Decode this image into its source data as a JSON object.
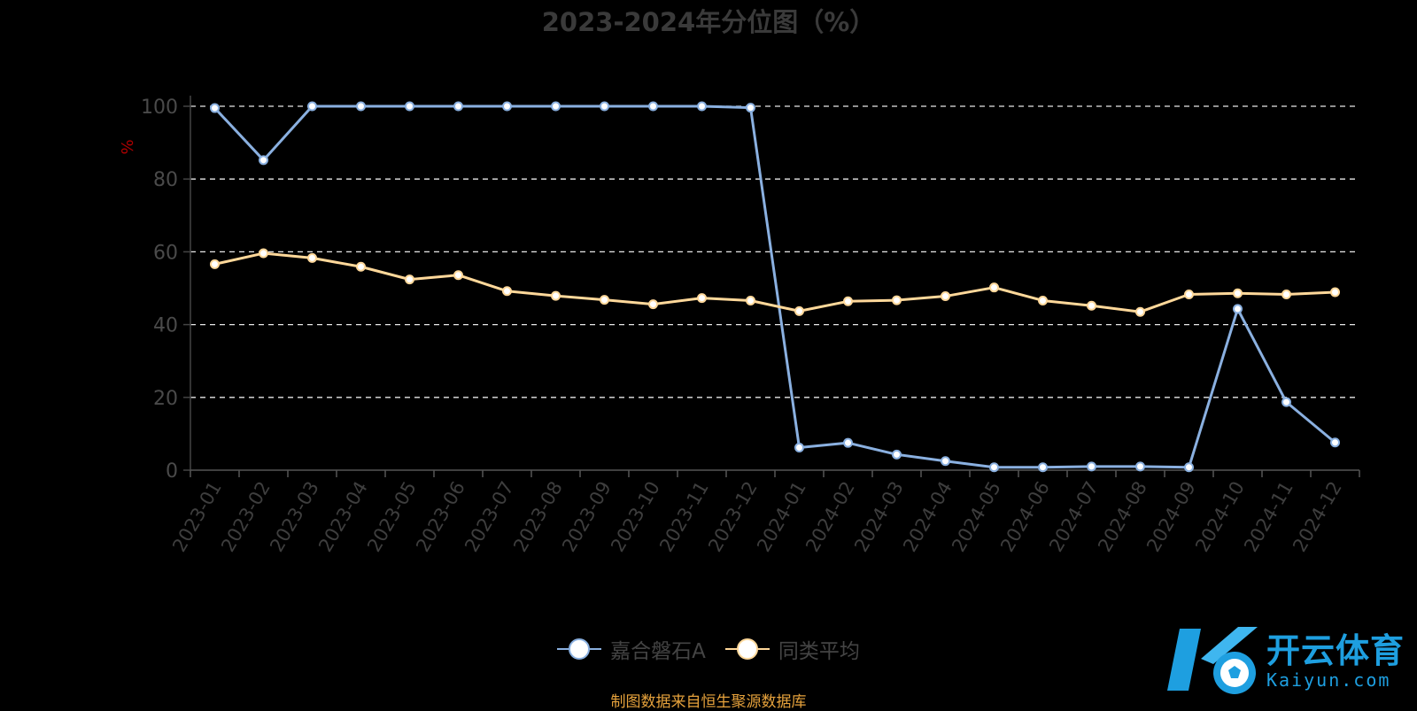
{
  "chart_data": {
    "type": "line",
    "title": "2023-2024年分位图（%）",
    "ylabel": "%",
    "ylim": [
      0,
      100
    ],
    "yticks": [
      "0",
      "20",
      "40",
      "60",
      "80",
      "100"
    ],
    "grid": true,
    "legend_position": "bottom",
    "categories": [
      "2023-01",
      "2023-02",
      "2023-03",
      "2023-04",
      "2023-05",
      "2023-06",
      "2023-07",
      "2023-08",
      "2023-09",
      "2023-10",
      "2023-11",
      "2023-12",
      "2024-01",
      "2024-02",
      "2024-03",
      "2024-04",
      "2024-05",
      "2024-06",
      "2024-07",
      "2024-08",
      "2024-09",
      "2024-10",
      "2024-11",
      "2024-12"
    ],
    "series": [
      {
        "name": "嘉合磐石A",
        "color": "#8ab0e0",
        "values": [
          99.5,
          85.2,
          100,
          100,
          100,
          100,
          100,
          100,
          100,
          100,
          100,
          99.6,
          6.2,
          7.5,
          4.3,
          2.5,
          0.8,
          0.8,
          1.0,
          1.0,
          0.8,
          44.3,
          18.7,
          7.6
        ]
      },
      {
        "name": "同类平均",
        "color": "#ffd89a",
        "values": [
          56.6,
          59.6,
          58.3,
          55.9,
          52.4,
          53.6,
          49.2,
          47.9,
          46.8,
          45.6,
          47.3,
          46.6,
          43.7,
          46.4,
          46.7,
          47.8,
          50.2,
          46.6,
          45.2,
          43.5,
          48.3,
          48.6,
          48.3,
          48.9
        ]
      }
    ]
  },
  "footer": {
    "source_note": "制图数据来自恒生聚源数据库"
  },
  "watermark": {
    "brand": "开云体育",
    "url": "Kaiyun.com"
  }
}
